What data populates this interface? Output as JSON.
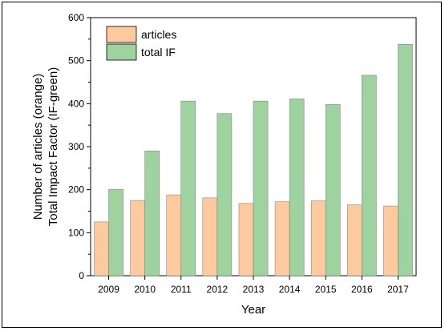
{
  "chart_data": {
    "type": "bar",
    "xlabel": "Year",
    "ylabel_lines": [
      "Number of articles (orange)",
      "Total Impact Factor (IF-green)"
    ],
    "categories": [
      "2009",
      "2010",
      "2011",
      "2012",
      "2013",
      "2014",
      "2015",
      "2016",
      "2017"
    ],
    "series": [
      {
        "name": "articles",
        "color": "#fdc99e",
        "values": [
          125,
          175,
          188,
          181,
          168,
          172,
          174,
          165,
          162
        ]
      },
      {
        "name": "total IF",
        "color": "#9ed39f",
        "values": [
          201,
          290,
          406,
          377,
          406,
          411,
          398,
          466,
          538
        ]
      }
    ],
    "ylim": [
      0,
      600
    ],
    "yticks": [
      0,
      100,
      200,
      300,
      400,
      500,
      600
    ],
    "grid": false,
    "legend_position": "top-left"
  }
}
